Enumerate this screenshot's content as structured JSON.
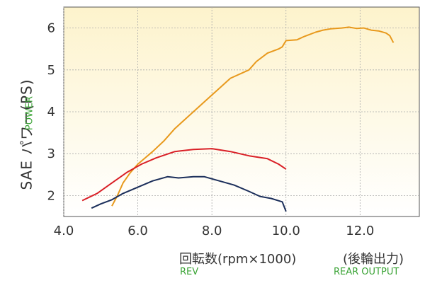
{
  "chart_data": {
    "type": "line",
    "ylabel": "SAE パワー(PS)",
    "ylabel_sub": "POWER",
    "xlabel": "回転数(rpm×1000)",
    "xlabel_note": "(後輪出力)",
    "xlabel_sub": "REV",
    "xlabel_note_sub": "REAR OUTPUT",
    "xlim": [
      4.0,
      13.6
    ],
    "ylim": [
      1.5,
      6.5
    ],
    "xticks": [
      "4.0",
      "6.0",
      "8.0",
      "10.0",
      "12.0"
    ],
    "xtick_values": [
      4.0,
      6.0,
      8.0,
      10.0,
      12.0
    ],
    "yticks": [
      "2",
      "3",
      "4",
      "5",
      "6"
    ],
    "ytick_values": [
      2,
      3,
      4,
      5,
      6
    ],
    "grid": true,
    "colors": {
      "background_top": "#fdf3cc",
      "background_bottom": "#ffffff",
      "grid": "#aaaaaa"
    },
    "series": [
      {
        "color": "#e8991c",
        "x": [
          5.3,
          5.45,
          5.6,
          5.8,
          6.0,
          6.2,
          6.4,
          6.7,
          7.0,
          7.5,
          8.0,
          8.5,
          9.0,
          9.2,
          9.5,
          9.8,
          9.9,
          10.0,
          10.3,
          10.5,
          10.8,
          11.0,
          11.2,
          11.5,
          11.7,
          11.9,
          12.1,
          12.3,
          12.5,
          12.7,
          12.8,
          12.9
        ],
        "y": [
          1.75,
          2.0,
          2.3,
          2.55,
          2.75,
          2.9,
          3.05,
          3.3,
          3.6,
          4.0,
          4.4,
          4.8,
          5.0,
          5.2,
          5.4,
          5.5,
          5.55,
          5.7,
          5.72,
          5.8,
          5.9,
          5.95,
          5.98,
          6.0,
          6.02,
          5.99,
          6.0,
          5.95,
          5.93,
          5.88,
          5.82,
          5.65
        ]
      },
      {
        "color": "#d91f26",
        "x": [
          4.5,
          4.9,
          5.3,
          5.7,
          6.1,
          6.5,
          7.0,
          7.5,
          8.0,
          8.5,
          9.0,
          9.5,
          9.8,
          10.0
        ],
        "y": [
          1.88,
          2.05,
          2.3,
          2.55,
          2.75,
          2.9,
          3.05,
          3.1,
          3.12,
          3.05,
          2.95,
          2.88,
          2.75,
          2.63
        ]
      },
      {
        "color": "#1b2e5a",
        "x": [
          4.75,
          5.0,
          5.3,
          5.6,
          6.0,
          6.4,
          6.8,
          7.1,
          7.5,
          7.8,
          8.2,
          8.6,
          9.0,
          9.3,
          9.6,
          9.9,
          10.0
        ],
        "y": [
          1.7,
          1.8,
          1.9,
          2.05,
          2.2,
          2.35,
          2.45,
          2.42,
          2.45,
          2.45,
          2.35,
          2.25,
          2.1,
          1.98,
          1.93,
          1.85,
          1.62
        ]
      }
    ]
  }
}
